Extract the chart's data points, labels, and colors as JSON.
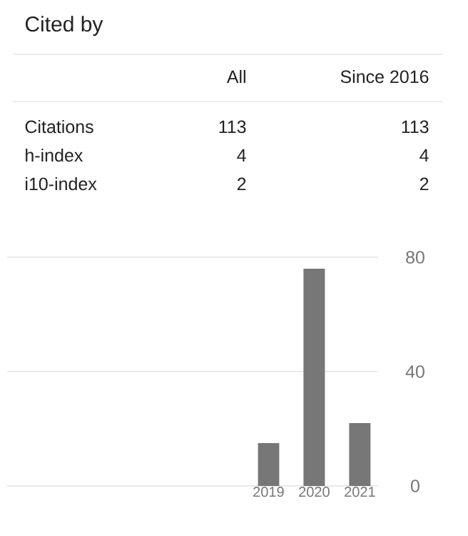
{
  "chart_data": {
    "type": "bar",
    "title": "Cited by",
    "categories": [
      "2019",
      "2020",
      "2021"
    ],
    "values": [
      15,
      76,
      22
    ],
    "color": "#777777",
    "ylim": [
      0,
      80
    ],
    "yticks": [
      0,
      40,
      80
    ],
    "grid": "y",
    "annotations": [
      "All",
      "Since 2016",
      "Citations",
      "113",
      "113",
      "h-index",
      "4",
      "4",
      "i10-index",
      "2",
      "2"
    ]
  }
}
